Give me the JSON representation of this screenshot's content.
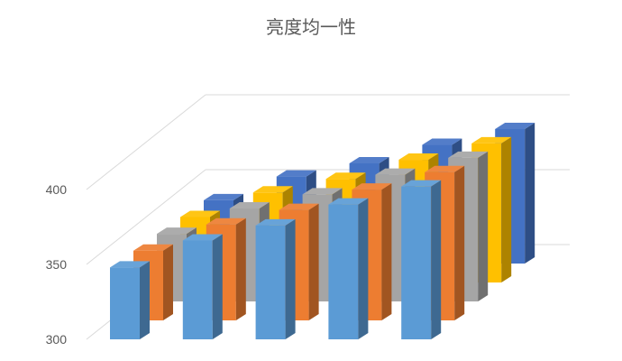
{
  "chart_data": {
    "type": "bar",
    "variant": "3d-clustered-columns",
    "title": "亮度均一性",
    "xlabel": "",
    "ylabel": "",
    "ylim": [
      300,
      400
    ],
    "yticks": [
      "300",
      "350",
      "400"
    ],
    "grid": true,
    "legend": "none",
    "categories": [
      "",
      "",
      "",
      "",
      ""
    ],
    "series": [
      {
        "color": "#5B9BD5",
        "values": [
          348,
          366,
          376,
          390,
          402
        ]
      },
      {
        "color": "#ED7D31",
        "values": [
          348,
          366,
          376,
          390,
          402
        ]
      },
      {
        "color": "#A5A5A5",
        "values": [
          348,
          366,
          376,
          390,
          402
        ]
      },
      {
        "color": "#FFC000",
        "values": [
          348,
          366,
          376,
          390,
          402
        ]
      },
      {
        "color": "#4472C4",
        "values": [
          348,
          366,
          376,
          390,
          402
        ]
      }
    ]
  }
}
